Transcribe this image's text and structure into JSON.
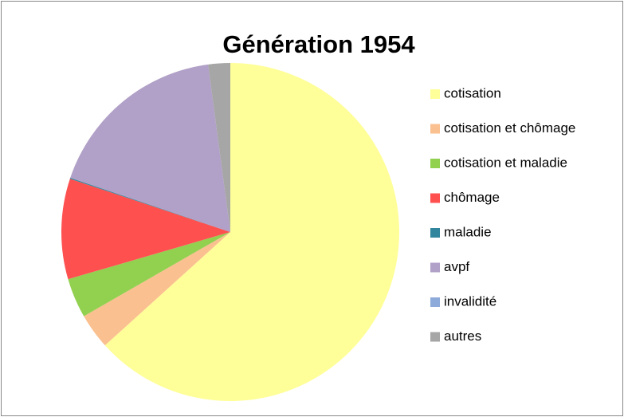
{
  "chart_data": {
    "type": "pie",
    "title": "Génération 1954",
    "categories": [
      "cotisation",
      "cotisation et chômage",
      "cotisation et maladie",
      "chômage",
      "maladie",
      "avpf",
      "invalidité",
      "autres"
    ],
    "values": [
      63.3,
      3.4,
      3.8,
      9.6,
      0.1,
      17.7,
      0,
      2.1
    ],
    "colors": [
      "#ffff99",
      "#fac090",
      "#92d050",
      "#ff5050",
      "#31859c",
      "#b1a0c7",
      "#8eaadb",
      "#a6a6a6"
    ],
    "legend": "right"
  }
}
